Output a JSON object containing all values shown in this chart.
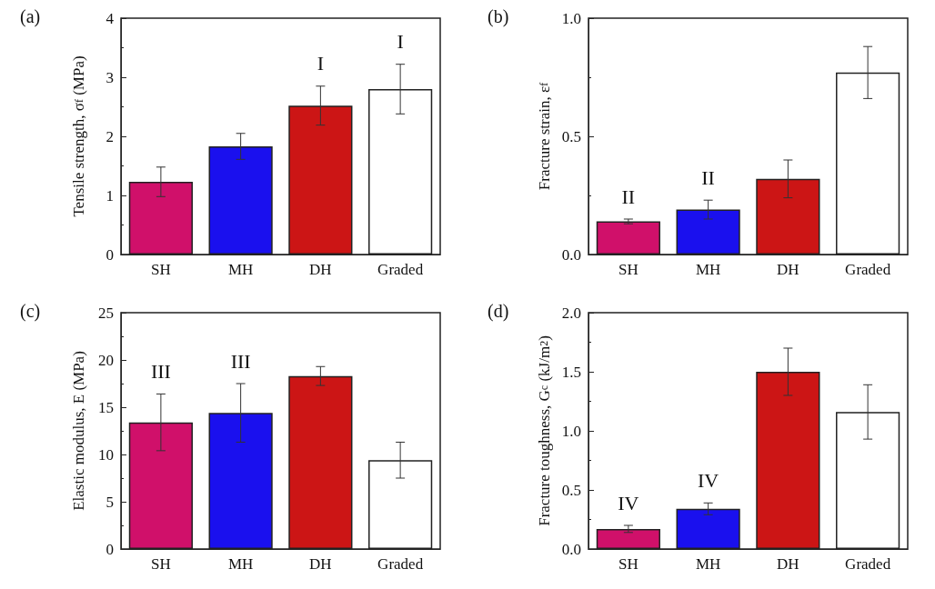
{
  "chart_data": [
    {
      "type": "bar",
      "annotations": [
        "(a)",
        {
          "text": "I",
          "x": "DH",
          "y": 2.52
        },
        {
          "text": "I",
          "x": "Graded",
          "y": 2.8
        }
      ],
      "ylabel": "Tensile strength, σ$_{f}$ (MPa)",
      "categories": [
        "SH",
        "MH",
        "DH",
        "Graded"
      ],
      "values": [
        1.23,
        1.83,
        2.52,
        2.8
      ],
      "errors": [
        0.25,
        0.22,
        0.33,
        0.42
      ],
      "colors": [
        "#d0106a",
        "#1a10ee",
        "#cc1515",
        "#ffffff"
      ],
      "ylim": [
        0,
        4
      ],
      "yticks": [
        0,
        1,
        2,
        3,
        4
      ],
      "grid": false
    },
    {
      "type": "bar",
      "annotations": [
        "(b)",
        {
          "text": "II",
          "x": "SH",
          "y": 0.14
        },
        {
          "text": "II",
          "x": "MH",
          "y": 0.19
        }
      ],
      "ylabel": "Fracture strain, ε$_{f}$",
      "categories": [
        "SH",
        "MH",
        "DH",
        "Graded"
      ],
      "values": [
        0.14,
        0.19,
        0.32,
        0.77
      ],
      "errors": [
        0.01,
        0.04,
        0.08,
        0.11
      ],
      "colors": [
        "#d0106a",
        "#1a10ee",
        "#cc1515",
        "#ffffff"
      ],
      "ylim": [
        0,
        1
      ],
      "yticks": [
        {
          "value": 0,
          "label": "0.0"
        },
        0.5,
        {
          "value": 1,
          "label": "1.0"
        }
      ],
      "grid": false
    },
    {
      "type": "bar",
      "annotations": [
        "(c)",
        {
          "text": "III",
          "x": "SH",
          "y": 13.4
        },
        {
          "text": "III",
          "x": "MH",
          "y": 14.4
        }
      ],
      "ylabel": "Elastic modulus, E (MPa)",
      "categories": [
        "SH",
        "MH",
        "DH",
        "Graded"
      ],
      "values": [
        13.4,
        14.4,
        18.3,
        9.4
      ],
      "errors": [
        3.0,
        3.1,
        1.0,
        1.9
      ],
      "colors": [
        "#d0106a",
        "#1a10ee",
        "#cc1515",
        "#ffffff"
      ],
      "ylim": [
        0,
        25
      ],
      "yticks": [
        0,
        5,
        10,
        15,
        20,
        25
      ],
      "grid": false
    },
    {
      "type": "bar",
      "annotations": [
        "(d)",
        {
          "text": "IV",
          "x": "SH",
          "y": 0.17
        },
        {
          "text": "IV",
          "x": "MH",
          "y": 0.34
        }
      ],
      "ylabel": "Fracture toughness, G$_{c}$ (kJ/m$^{2}$)",
      "categories": [
        "SH",
        "MH",
        "DH",
        "Graded"
      ],
      "values": [
        0.17,
        0.34,
        1.5,
        1.16
      ],
      "errors": [
        0.03,
        0.05,
        0.2,
        0.23
      ],
      "colors": [
        "#d0106a",
        "#1a10ee",
        "#cc1515",
        "#ffffff"
      ],
      "ylim": [
        0,
        2
      ],
      "yticks": [
        {
          "value": 0,
          "label": "0.0"
        },
        0.5,
        {
          "value": 1,
          "label": "1.0"
        },
        1.5,
        {
          "value": 2,
          "label": "2.0"
        }
      ],
      "grid": false
    }
  ]
}
